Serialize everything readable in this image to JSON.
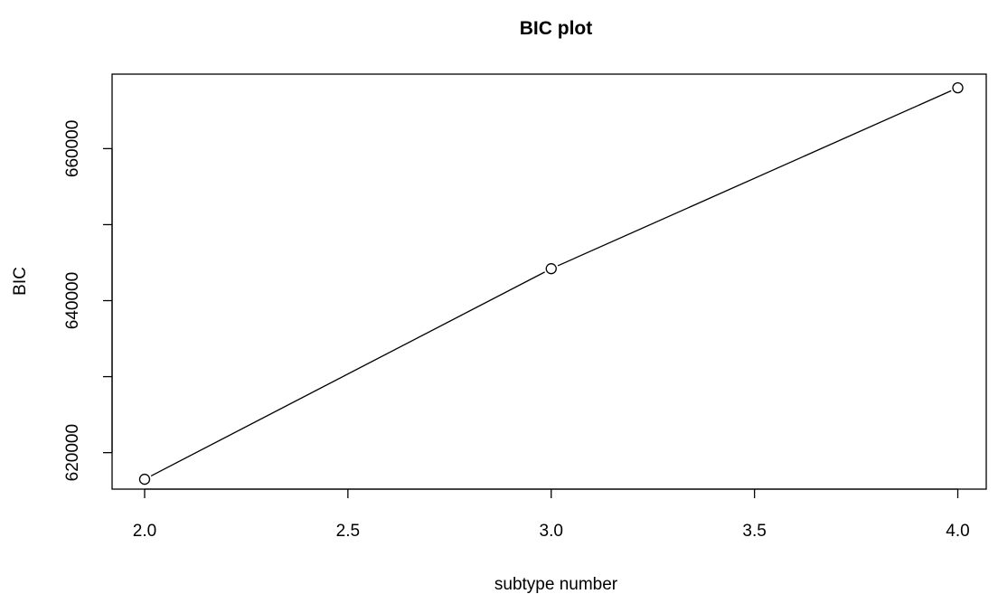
{
  "chart_data": {
    "type": "line",
    "title": "BIC plot",
    "xlabel": "subtype number",
    "ylabel": "BIC",
    "x": [
      2.0,
      3.0,
      4.0
    ],
    "series": [
      {
        "values": [
          616500,
          644200,
          668000
        ],
        "marker": "open-circle"
      }
    ],
    "xlim": [
      1.92,
      4.07
    ],
    "ylim": [
      615200,
      669800
    ],
    "xticks": [
      2.0,
      2.5,
      3.0,
      3.5,
      4.0
    ],
    "xtick_labels": [
      "2.0",
      "2.5",
      "3.0",
      "3.5",
      "4.0"
    ],
    "yticks": [
      620000,
      630000,
      640000,
      650000,
      660000
    ],
    "ytick_labels": [
      "620000",
      "",
      "640000",
      "",
      "660000"
    ],
    "grid": false,
    "legend": "none",
    "box": true,
    "colors": {
      "line": "#000000",
      "marker_fill": "#ffffff",
      "background": "#ffffff"
    }
  }
}
